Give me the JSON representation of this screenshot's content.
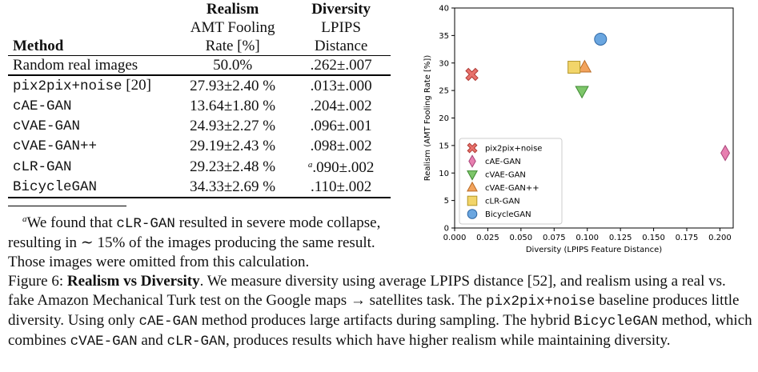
{
  "table": {
    "head": {
      "realism": "Realism",
      "diversity": "Diversity",
      "method": "Method",
      "realism_sub1": "AMT Fooling",
      "realism_sub2": "Rate [%]",
      "diversity_sub1": "LPIPS",
      "diversity_sub2": "Distance"
    },
    "reference_row": {
      "method": "Random real images",
      "realism": "50.0%",
      "diversity": ".262±.007"
    },
    "rows": [
      {
        "method": "pix2pix+noise",
        "method_suffix": " [20]",
        "realism": "27.93±2.40 %",
        "diversity": ".013±.000",
        "footnote_mark": ""
      },
      {
        "method": "cAE-GAN",
        "method_suffix": "",
        "realism": "13.64±1.80 %",
        "diversity": ".204±.002",
        "footnote_mark": ""
      },
      {
        "method": "cVAE-GAN",
        "method_suffix": "",
        "realism": "24.93±2.27 %",
        "diversity": ".096±.001",
        "footnote_mark": ""
      },
      {
        "method": "cVAE-GAN++",
        "method_suffix": "",
        "realism": "29.19±2.43 %",
        "diversity": ".098±.002",
        "footnote_mark": ""
      },
      {
        "method": "cLR-GAN",
        "method_suffix": "",
        "realism": "29.23±2.48 %",
        "diversity": ".090±.002",
        "footnote_mark": "a"
      },
      {
        "method": "BicycleGAN",
        "method_suffix": "",
        "realism": "34.33±2.69 %",
        "diversity": ".110±.002",
        "footnote_mark": ""
      }
    ]
  },
  "footnote": {
    "mark": "a",
    "text_before": "We found that ",
    "code": "cLR-GAN",
    "text_after": " resulted in severe mode collapse, resulting in ∼ 15% of the images producing the same result. Those images were omitted from this calculation."
  },
  "caption": {
    "label": "Figure 6: ",
    "bold": "Realism vs Diversity",
    "parts": [
      {
        "t": ". We measure diversity using average LPIPS distance [52], and realism using a real vs. fake Amazon Mechanical Turk test on the Google maps → satellites task. The ",
        "code": false
      },
      {
        "t": "pix2pix+noise",
        "code": true
      },
      {
        "t": " baseline produces little diversity. Using only ",
        "code": false
      },
      {
        "t": "cAE-GAN",
        "code": true
      },
      {
        "t": " method produces large artifacts during sampling. The hybrid ",
        "code": false
      },
      {
        "t": "BicycleGAN",
        "code": true
      },
      {
        "t": " method, which combines ",
        "code": false
      },
      {
        "t": "cVAE-GAN",
        "code": true
      },
      {
        "t": " and ",
        "code": false
      },
      {
        "t": "cLR-GAN",
        "code": true
      },
      {
        "t": ", produces results which have higher realism while maintaining diversity.",
        "code": false
      }
    ]
  },
  "chart_data": {
    "type": "scatter",
    "xlabel": "Diversity (LPIPS Feature Distance)",
    "ylabel": "Realism (AMT Fooling Rate [%])",
    "xlim": [
      0.0,
      0.21
    ],
    "ylim": [
      0,
      40
    ],
    "xticks": [
      "0.000",
      "0.025",
      "0.050",
      "0.075",
      "0.100",
      "0.125",
      "0.150",
      "0.175",
      "0.200"
    ],
    "yticks": [
      "0",
      "5",
      "10",
      "15",
      "20",
      "25",
      "30",
      "35",
      "40"
    ],
    "grid": false,
    "legend_position": "lower-left",
    "series": [
      {
        "name": "pix2pix+noise",
        "x": 0.013,
        "y": 27.93,
        "marker": "x-filled",
        "color": "#e8716b",
        "edge": "#b03a35"
      },
      {
        "name": "cAE-GAN",
        "x": 0.204,
        "y": 13.64,
        "marker": "diamond",
        "color": "#e77fb0",
        "edge": "#a84479"
      },
      {
        "name": "cVAE-GAN",
        "x": 0.096,
        "y": 24.93,
        "marker": "triangle-down",
        "color": "#7dc66a",
        "edge": "#3f8a32"
      },
      {
        "name": "cVAE-GAN++",
        "x": 0.098,
        "y": 29.19,
        "marker": "triangle-up",
        "color": "#f2a35c",
        "edge": "#b86a24"
      },
      {
        "name": "cLR-GAN",
        "x": 0.09,
        "y": 29.23,
        "marker": "square",
        "color": "#f2d56a",
        "edge": "#b3962a"
      },
      {
        "name": "BicycleGAN",
        "x": 0.11,
        "y": 34.33,
        "marker": "circle",
        "color": "#6aa6e0",
        "edge": "#2f67a3"
      }
    ]
  }
}
